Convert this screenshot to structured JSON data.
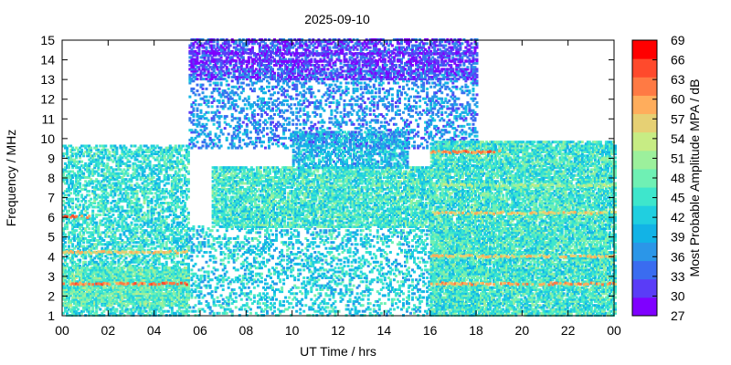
{
  "chart_data": {
    "type": "heatmap",
    "title": "2025-09-10",
    "xlabel": "UT Time / hrs",
    "ylabel": "Frequency / MHz",
    "x_ticks": [
      "00",
      "02",
      "04",
      "06",
      "08",
      "10",
      "12",
      "14",
      "16",
      "18",
      "20",
      "22",
      "00"
    ],
    "y_ticks": [
      "1",
      "2",
      "3",
      "4",
      "5",
      "6",
      "7",
      "8",
      "9",
      "10",
      "11",
      "12",
      "13",
      "14",
      "15"
    ],
    "xlim": [
      0,
      24
    ],
    "ylim": [
      1,
      15
    ],
    "colorbar": {
      "label": "Most Probable Amplitude MPA / dB",
      "ticks": [
        "27",
        "30",
        "33",
        "36",
        "39",
        "42",
        "45",
        "48",
        "51",
        "54",
        "57",
        "60",
        "63",
        "66",
        "69"
      ],
      "range": [
        27,
        69
      ],
      "colors": [
        "#7f00ff",
        "#5a3cf7",
        "#3a6cf0",
        "#2b96e8",
        "#12b3e6",
        "#20cfe0",
        "#3ee6cc",
        "#6ff0b4",
        "#9cf09c",
        "#c7ec84",
        "#e6d074",
        "#ffad5c",
        "#ff7a44",
        "#ff4a2c",
        "#ff0000"
      ]
    },
    "regions": [
      {
        "t": [
          0,
          5.5
        ],
        "f": [
          1.0,
          9.6
        ],
        "mpa": 44,
        "density": 0.55
      },
      {
        "t": [
          0,
          5.5
        ],
        "f": [
          1.5,
          3.5
        ],
        "mpa": 47,
        "density": 0.8
      },
      {
        "t": [
          5.5,
          18
        ],
        "f": [
          1.0,
          5.5
        ],
        "mpa": 42,
        "density": 0.3
      },
      {
        "t": [
          6.5,
          16
        ],
        "f": [
          5.5,
          8.5
        ],
        "mpa": 45,
        "density": 0.75
      },
      {
        "t": [
          10,
          15
        ],
        "f": [
          8.5,
          10.3
        ],
        "mpa": 40,
        "density": 0.6
      },
      {
        "t": [
          5.5,
          18
        ],
        "f": [
          9.5,
          13.5
        ],
        "mpa": 36,
        "density": 0.3
      },
      {
        "t": [
          5.5,
          18
        ],
        "f": [
          13.0,
          15.0
        ],
        "mpa": 31,
        "density": 0.55
      },
      {
        "t": [
          16,
          24
        ],
        "f": [
          1.0,
          9.8
        ],
        "mpa": 45,
        "density": 0.8
      }
    ],
    "lines": [
      {
        "t": [
          0,
          5.5
        ],
        "f": 2.6,
        "mpa": 63
      },
      {
        "t": [
          0,
          5.5
        ],
        "f": 4.2,
        "mpa": 58
      },
      {
        "t": [
          0,
          1.2
        ],
        "f": 6.0,
        "mpa": 64
      },
      {
        "t": [
          16,
          24
        ],
        "f": 2.6,
        "mpa": 60
      },
      {
        "t": [
          16,
          24
        ],
        "f": 4.0,
        "mpa": 58
      },
      {
        "t": [
          16,
          24
        ],
        "f": 6.2,
        "mpa": 57
      },
      {
        "t": [
          16,
          24
        ],
        "f": 7.6,
        "mpa": 52
      },
      {
        "t": [
          16,
          19
        ],
        "f": 9.3,
        "mpa": 62
      },
      {
        "t": [
          5.5,
          18
        ],
        "f": 13.9,
        "mpa": 28
      },
      {
        "t": [
          5.5,
          18
        ],
        "f": 14.3,
        "mpa": 29
      }
    ]
  }
}
